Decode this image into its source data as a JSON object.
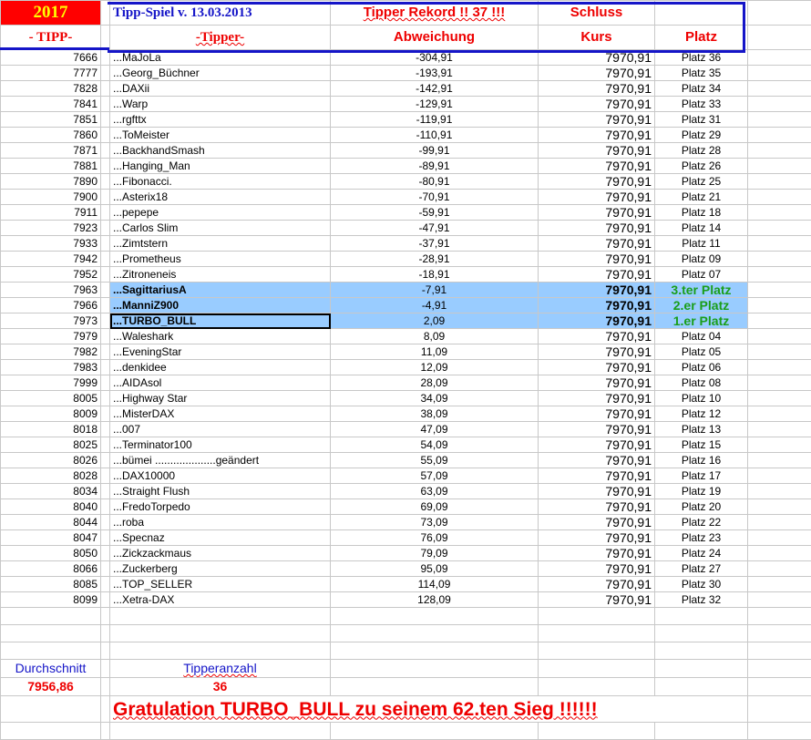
{
  "header": {
    "year": "2017",
    "title": "Tipp-Spiel v. 13.03.2013",
    "record": "Tipper Rekord !!  37  !!!",
    "schluss": "Schluss",
    "col_tipp": "- TIPP-",
    "col_tipper": "-Tipper-",
    "col_abweichung": "Abweichung",
    "col_kurs": "Kurs",
    "col_platz": "Platz"
  },
  "colors": {
    "year_bg": "#ff0000",
    "year_text": "#ffff00",
    "title": "#1515c8",
    "header_text": "#ee0000",
    "highlight": "#99ccff",
    "podium": "#1a9e1a"
  },
  "rows": [
    {
      "tipp": "7666",
      "name": "...MaJoLa",
      "abw": "-304,91",
      "kurs": "7970,91",
      "platz": "Platz 36"
    },
    {
      "tipp": "7777",
      "name": "...Georg_Büchner",
      "abw": "-193,91",
      "kurs": "7970,91",
      "platz": "Platz 35"
    },
    {
      "tipp": "7828",
      "name": "...DAXii",
      "abw": "-142,91",
      "kurs": "7970,91",
      "platz": "Platz 34"
    },
    {
      "tipp": "7841",
      "name": "...Warp",
      "abw": "-129,91",
      "kurs": "7970,91",
      "platz": "Platz 33"
    },
    {
      "tipp": "7851",
      "name": "...rgfttx",
      "abw": "-119,91",
      "kurs": "7970,91",
      "platz": "Platz 31"
    },
    {
      "tipp": "7860",
      "name": "...ToMeister",
      "abw": "-110,91",
      "kurs": "7970,91",
      "platz": "Platz 29"
    },
    {
      "tipp": "7871",
      "name": "...BackhandSmash",
      "abw": "-99,91",
      "kurs": "7970,91",
      "platz": "Platz 28"
    },
    {
      "tipp": "7881",
      "name": "...Hanging_Man",
      "abw": "-89,91",
      "kurs": "7970,91",
      "platz": "Platz 26"
    },
    {
      "tipp": "7890",
      "name": "...Fibonacci.",
      "abw": "-80,91",
      "kurs": "7970,91",
      "platz": "Platz 25"
    },
    {
      "tipp": "7900",
      "name": "...Asterix18",
      "abw": "-70,91",
      "kurs": "7970,91",
      "platz": "Platz 21"
    },
    {
      "tipp": "7911",
      "name": "...pepepe",
      "abw": "-59,91",
      "kurs": "7970,91",
      "platz": "Platz 18"
    },
    {
      "tipp": "7923",
      "name": "...Carlos Slim",
      "abw": "-47,91",
      "kurs": "7970,91",
      "platz": "Platz 14"
    },
    {
      "tipp": "7933",
      "name": "...Zimtstern",
      "abw": "-37,91",
      "kurs": "7970,91",
      "platz": "Platz 11"
    },
    {
      "tipp": "7942",
      "name": "...Prometheus",
      "abw": "-28,91",
      "kurs": "7970,91",
      "platz": "Platz 09"
    },
    {
      "tipp": "7952",
      "name": "...Zitroneneis",
      "abw": "-18,91",
      "kurs": "7970,91",
      "platz": "Platz 07"
    },
    {
      "tipp": "7963",
      "name": "...SagittariusA",
      "abw": "-7,91",
      "kurs": "7970,91",
      "platz": "3.ter Platz",
      "hl": true
    },
    {
      "tipp": "7966",
      "name": "...ManniZ900",
      "abw": "-4,91",
      "kurs": "7970,91",
      "platz": "2.er Platz",
      "hl": true
    },
    {
      "tipp": "7973",
      "name": "...TURBO_BULL",
      "abw": "2,09",
      "kurs": "7970,91",
      "platz": "1.er Platz",
      "hl": true
    },
    {
      "tipp": "7979",
      "name": "...Waleshark",
      "abw": "8,09",
      "kurs": "7970,91",
      "platz": "Platz 04"
    },
    {
      "tipp": "7982",
      "name": "...EveningStar",
      "abw": "11,09",
      "kurs": "7970,91",
      "platz": "Platz 05"
    },
    {
      "tipp": "7983",
      "name": "...denkidee",
      "abw": "12,09",
      "kurs": "7970,91",
      "platz": "Platz 06"
    },
    {
      "tipp": "7999",
      "name": "...AIDAsol",
      "abw": "28,09",
      "kurs": "7970,91",
      "platz": "Platz 08"
    },
    {
      "tipp": "8005",
      "name": "...Highway Star",
      "abw": "34,09",
      "kurs": "7970,91",
      "platz": "Platz 10"
    },
    {
      "tipp": "8009",
      "name": "...MisterDAX",
      "abw": "38,09",
      "kurs": "7970,91",
      "platz": "Platz 12"
    },
    {
      "tipp": "8018",
      "name": "...007",
      "abw": "47,09",
      "kurs": "7970,91",
      "platz": "Platz 13"
    },
    {
      "tipp": "8025",
      "name": "...Terminator100",
      "abw": "54,09",
      "kurs": "7970,91",
      "platz": "Platz 15"
    },
    {
      "tipp": "8026",
      "name": "...bümei ....................geändert",
      "abw": "55,09",
      "kurs": "7970,91",
      "platz": "Platz 16"
    },
    {
      "tipp": "8028",
      "name": "...DAX10000",
      "abw": "57,09",
      "kurs": "7970,91",
      "platz": "Platz 17"
    },
    {
      "tipp": "8034",
      "name": "...Straight Flush",
      "abw": "63,09",
      "kurs": "7970,91",
      "platz": "Platz 19"
    },
    {
      "tipp": "8040",
      "name": "...FredoTorpedo",
      "abw": "69,09",
      "kurs": "7970,91",
      "platz": "Platz 20"
    },
    {
      "tipp": "8044",
      "name": "...roba",
      "abw": "73,09",
      "kurs": "7970,91",
      "platz": "Platz 22"
    },
    {
      "tipp": "8047",
      "name": "...Specnaz",
      "abw": "76,09",
      "kurs": "7970,91",
      "platz": "Platz 23"
    },
    {
      "tipp": "8050",
      "name": "...Zickzackmaus",
      "abw": "79,09",
      "kurs": "7970,91",
      "platz": "Platz 24"
    },
    {
      "tipp": "8066",
      "name": "...Zuckerberg",
      "abw": "95,09",
      "kurs": "7970,91",
      "platz": "Platz 27"
    },
    {
      "tipp": "8085",
      "name": "...TOP_SELLER",
      "abw": "114,09",
      "kurs": "7970,91",
      "platz": "Platz 30"
    },
    {
      "tipp": "8099",
      "name": "...Xetra-DAX",
      "abw": "128,09",
      "kurs": "7970,91",
      "platz": "Platz 32"
    }
  ],
  "footer": {
    "avg_label": "Durchschnitt",
    "avg_value": "7956,86",
    "count_label": "Tipperanzahl",
    "count_value": "36",
    "congrats": "Gratulation TURBO_BULL  zu seinem 62.ten Sieg !!!!!!"
  }
}
